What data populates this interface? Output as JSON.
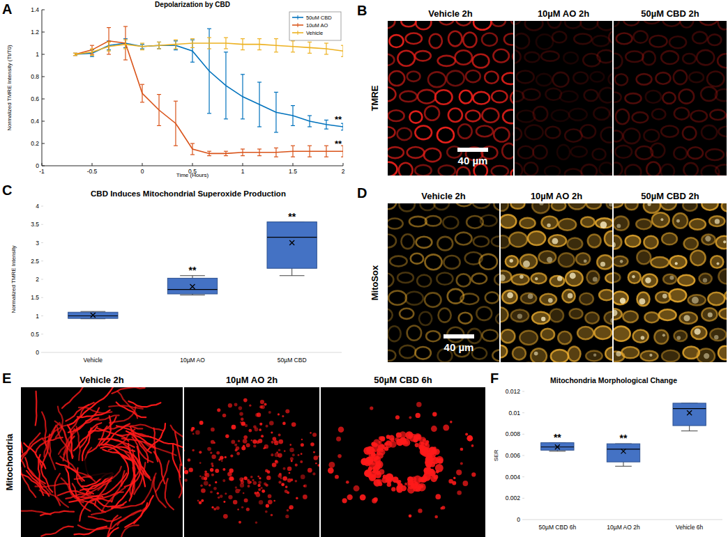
{
  "chart_data": [
    {
      "panel": "A",
      "type": "line",
      "title": "Depolarization by CBD",
      "x_label": "Time (Hours)",
      "y_label": "Normalized TMRE Intensity (Tt/T0)",
      "x": [
        -0.667,
        -0.5,
        -0.333,
        -0.167,
        0,
        0.167,
        0.333,
        0.5,
        0.667,
        0.833,
        1,
        1.167,
        1.333,
        1.5,
        1.667,
        1.833,
        2
      ],
      "series": [
        {
          "name": "50uM CBD",
          "color": "#0072bd",
          "values": [
            1.0,
            1.01,
            1.08,
            1.1,
            1.07,
            1.08,
            1.08,
            1.03,
            0.85,
            0.72,
            0.62,
            0.55,
            0.48,
            0.45,
            0.4,
            0.37,
            0.35
          ],
          "errors": [
            0.01,
            0.03,
            0.04,
            0.04,
            0.02,
            0.03,
            0.04,
            0.1,
            0.38,
            0.3,
            0.2,
            0.2,
            0.18,
            0.09,
            0.05,
            0.04,
            0.03
          ],
          "annotation": "**"
        },
        {
          "name": "10uM AO",
          "color": "#d95319",
          "values": [
            1.0,
            1.04,
            1.12,
            1.1,
            0.65,
            0.5,
            0.38,
            0.15,
            0.11,
            0.11,
            0.12,
            0.12,
            0.12,
            0.13,
            0.13,
            0.13,
            0.13
          ],
          "errors": [
            0.01,
            0.04,
            0.12,
            0.15,
            0.08,
            0.14,
            0.2,
            0.05,
            0.02,
            0.02,
            0.03,
            0.03,
            0.04,
            0.05,
            0.05,
            0.05,
            0.05
          ],
          "annotation": "**"
        },
        {
          "name": "Vehicle",
          "color": "#edb120",
          "values": [
            1.0,
            1.02,
            1.07,
            1.09,
            1.07,
            1.08,
            1.09,
            1.1,
            1.1,
            1.1,
            1.09,
            1.09,
            1.08,
            1.07,
            1.06,
            1.05,
            1.03
          ],
          "errors": [
            0.01,
            0.03,
            0.04,
            0.04,
            0.03,
            0.03,
            0.04,
            0.04,
            0.05,
            0.05,
            0.05,
            0.05,
            0.06,
            0.05,
            0.05,
            0.05,
            0.05
          ]
        }
      ],
      "xlim": [
        -1,
        2
      ],
      "xticks": [
        -1,
        -0.5,
        0,
        0.5,
        1,
        1.5,
        2
      ],
      "ylim": [
        0,
        1.4
      ],
      "yticks": [
        0,
        0.2,
        0.4,
        0.6,
        0.8,
        1,
        1.2,
        1.4
      ],
      "legend": "upper right",
      "grid": false
    },
    {
      "panel": "C",
      "type": "box",
      "title": "CBD Induces Mitochondrial Superoxide Production",
      "y_label": "Normalized TMRE Intensity",
      "categories": [
        "Vehicle",
        "10µM AO",
        "50µM CBD"
      ],
      "min": [
        0.92,
        1.57,
        2.1
      ],
      "q1": [
        0.93,
        1.6,
        2.3
      ],
      "median": [
        1.0,
        1.72,
        3.15
      ],
      "q3": [
        1.1,
        2.03,
        3.57
      ],
      "max": [
        1.12,
        2.1,
        3.57
      ],
      "mean": [
        1.02,
        1.8,
        3.0
      ],
      "annotations": [
        null,
        "**",
        "**"
      ],
      "color": "#4472c4",
      "ylim": [
        0,
        4
      ],
      "yticks": [
        0,
        0.5,
        1,
        1.5,
        2,
        2.5,
        3,
        3.5,
        4
      ],
      "grid": false
    },
    {
      "panel": "F",
      "type": "box",
      "title": "Mitochondria Morphological Change",
      "y_label": "SER",
      "categories": [
        "50µM CBD 6h",
        "10µM AO 2h",
        "Vehicle 6h"
      ],
      "min": [
        0.0064,
        0.005,
        0.0083
      ],
      "q1": [
        0.0065,
        0.0054,
        0.0088
      ],
      "median": [
        0.0068,
        0.0066,
        0.0104
      ],
      "q3": [
        0.0072,
        0.0071,
        0.0109
      ],
      "max": [
        0.0072,
        0.0071,
        0.0109
      ],
      "mean": [
        0.0068,
        0.0064,
        0.01
      ],
      "annotations": [
        "**",
        "**",
        null
      ],
      "color": "#4472c4",
      "ylim": [
        0,
        0.012
      ],
      "yticks": [
        0,
        0.002,
        0.004,
        0.006,
        0.008,
        0.01,
        0.012
      ],
      "grid": false
    }
  ],
  "image_panels": [
    {
      "panel": "B",
      "row_label": "TMRE",
      "titles": [
        "Vehicle 2h",
        "10µM AO 2h",
        "50µM CBD 2h"
      ],
      "scale_bar": "40 µm",
      "color": "#e8201a"
    },
    {
      "panel": "D",
      "row_label": "MitoSox",
      "titles": [
        "Vehicle 2h",
        "10µM AO 2h",
        "50µM CBD 2h"
      ],
      "scale_bar": "40 µm",
      "color": "#f0b030"
    },
    {
      "panel": "E",
      "row_label": "Mitochondria",
      "titles": [
        "Vehicle 2h",
        "10µM AO 2h",
        "50µM CBD 6h"
      ],
      "color": "#ff1a1a"
    }
  ]
}
